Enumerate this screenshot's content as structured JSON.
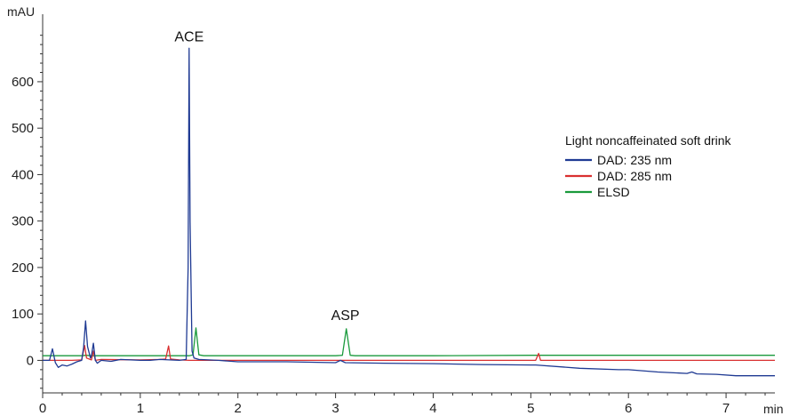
{
  "chart_data": {
    "type": "line",
    "ylabel": "mAU",
    "xlabel": "min",
    "xlim": [
      0,
      7.5
    ],
    "ylim": [
      -70,
      730
    ],
    "xticks": [
      0,
      1,
      2,
      3,
      4,
      5,
      6,
      7
    ],
    "yticks": [
      0,
      100,
      200,
      300,
      400,
      500,
      600
    ],
    "grid": false,
    "legend": {
      "title": "Light noncaffeinated soft drink",
      "position": "right"
    },
    "annotations": [
      {
        "text": "ACE",
        "x": 1.5,
        "y": 675
      },
      {
        "text": "ASP",
        "x": 3.1,
        "y": 75
      }
    ],
    "series": [
      {
        "name": "DAD: 235 nm",
        "color": "#1f3a93",
        "points": [
          [
            0,
            0
          ],
          [
            0.07,
            0
          ],
          [
            0.1,
            25
          ],
          [
            0.13,
            -5
          ],
          [
            0.16,
            -15
          ],
          [
            0.2,
            -10
          ],
          [
            0.25,
            -12
          ],
          [
            0.3,
            -8
          ],
          [
            0.35,
            -3
          ],
          [
            0.4,
            0
          ],
          [
            0.42,
            28
          ],
          [
            0.44,
            85
          ],
          [
            0.46,
            30
          ],
          [
            0.49,
            5
          ],
          [
            0.5,
            10
          ],
          [
            0.52,
            37
          ],
          [
            0.54,
            0
          ],
          [
            0.56,
            -6
          ],
          [
            0.6,
            0
          ],
          [
            0.7,
            -2
          ],
          [
            0.8,
            2
          ],
          [
            0.9,
            1
          ],
          [
            1.0,
            0
          ],
          [
            1.1,
            0
          ],
          [
            1.2,
            2
          ],
          [
            1.3,
            1
          ],
          [
            1.4,
            0
          ],
          [
            1.47,
            2
          ],
          [
            1.49,
            200
          ],
          [
            1.5,
            672
          ],
          [
            1.51,
            300
          ],
          [
            1.53,
            20
          ],
          [
            1.55,
            5
          ],
          [
            1.6,
            2
          ],
          [
            1.7,
            1
          ],
          [
            1.8,
            0
          ],
          [
            2.0,
            -3
          ],
          [
            2.5,
            -3
          ],
          [
            3.0,
            -5
          ],
          [
            3.05,
            0
          ],
          [
            3.1,
            -5
          ],
          [
            3.5,
            -6
          ],
          [
            4.0,
            -7
          ],
          [
            4.5,
            -9
          ],
          [
            5.0,
            -10
          ],
          [
            5.05,
            -10
          ],
          [
            5.5,
            -17
          ],
          [
            5.9,
            -20
          ],
          [
            6.0,
            -20
          ],
          [
            6.3,
            -25
          ],
          [
            6.6,
            -28
          ],
          [
            6.65,
            -25
          ],
          [
            6.7,
            -29
          ],
          [
            6.9,
            -30
          ],
          [
            7.1,
            -33
          ],
          [
            7.5,
            -33
          ]
        ]
      },
      {
        "name": "DAD: 285 nm",
        "color": "#d93030",
        "points": [
          [
            0,
            0
          ],
          [
            0.3,
            0
          ],
          [
            0.4,
            1
          ],
          [
            0.43,
            32
          ],
          [
            0.45,
            5
          ],
          [
            0.5,
            1
          ],
          [
            0.52,
            20
          ],
          [
            0.54,
            0
          ],
          [
            0.6,
            2
          ],
          [
            1.0,
            1
          ],
          [
            1.2,
            2
          ],
          [
            1.26,
            3
          ],
          [
            1.29,
            31
          ],
          [
            1.31,
            3
          ],
          [
            1.4,
            1
          ],
          [
            1.5,
            0
          ],
          [
            2.0,
            0
          ],
          [
            3.0,
            0
          ],
          [
            4.0,
            0
          ],
          [
            5.0,
            0
          ],
          [
            5.05,
            0
          ],
          [
            5.08,
            15
          ],
          [
            5.1,
            0
          ],
          [
            6.0,
            0
          ],
          [
            7.0,
            0
          ],
          [
            7.5,
            0
          ]
        ]
      },
      {
        "name": "ELSD",
        "color": "#1a9a3c",
        "points": [
          [
            0,
            10
          ],
          [
            0.4,
            10
          ],
          [
            0.44,
            11
          ],
          [
            0.5,
            10
          ],
          [
            1.0,
            10
          ],
          [
            1.5,
            10
          ],
          [
            1.54,
            12
          ],
          [
            1.57,
            70
          ],
          [
            1.6,
            12
          ],
          [
            1.65,
            10
          ],
          [
            2.0,
            10
          ],
          [
            3.0,
            10
          ],
          [
            3.07,
            11
          ],
          [
            3.11,
            68
          ],
          [
            3.15,
            11
          ],
          [
            3.2,
            10
          ],
          [
            4.0,
            10
          ],
          [
            5.0,
            11
          ],
          [
            6.0,
            11
          ],
          [
            7.0,
            11
          ],
          [
            7.5,
            11
          ]
        ]
      }
    ]
  }
}
